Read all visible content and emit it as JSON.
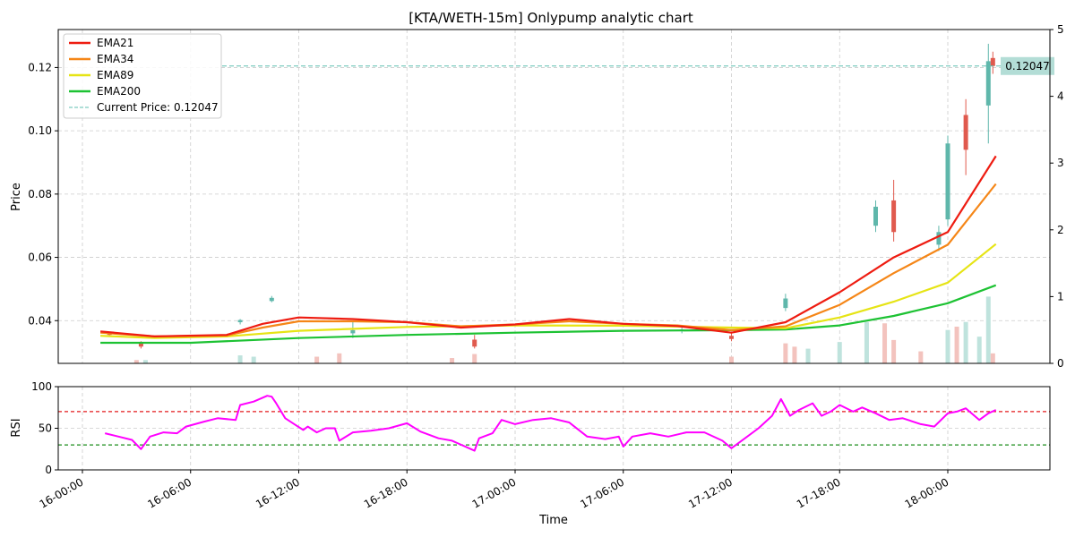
{
  "colors": {
    "up": "#5fb7ab",
    "down": "#e05a4e",
    "ema21": "#ee1c11",
    "ema34": "#f58617",
    "ema89": "#e6e415",
    "ema200": "#1dc233",
    "rsi": "#ff00ff",
    "current_price": "#5fbfb0",
    "rsi_overbought": "#e31a1c",
    "rsi_oversold": "#1a8c1a",
    "grid": "#cccccc"
  },
  "chart_data": [
    {
      "type": "candlestick",
      "title": "[KTA/WETH-15m] Onlypump analytic chart",
      "ylabel": "Price",
      "ylim": [
        0.0265,
        0.132
      ],
      "y_ticks": [
        "0.04",
        "0.06",
        "0.08",
        "0.10",
        "0.12"
      ],
      "y_tick_values": [
        0.04,
        0.06,
        0.08,
        0.1,
        0.12
      ],
      "secondary_ylim": [
        0,
        5
      ],
      "secondary_y_ticks": [
        "0",
        "1",
        "2",
        "3",
        "4",
        "5"
      ],
      "secondary_y_tick_values": [
        0,
        1,
        2,
        3,
        4,
        5
      ],
      "grid": true,
      "legend_position": "top-left",
      "legend": [
        {
          "label": "EMA21",
          "style": "line",
          "color_key": "ema21"
        },
        {
          "label": "EMA34",
          "style": "line",
          "color_key": "ema34"
        },
        {
          "label": "EMA89",
          "style": "line",
          "color_key": "ema89"
        },
        {
          "label": "EMA200",
          "style": "line",
          "color_key": "ema200"
        },
        {
          "label": "Current Price: 0.12047",
          "style": "dashed",
          "color_key": "current_price"
        }
      ],
      "current_price": 0.12047,
      "current_price_label": "0.12047",
      "candles_summary": [
        {
          "time": "16-01:30",
          "open": 0.0362,
          "high": 0.0365,
          "low": 0.0352,
          "close": 0.0355
        },
        {
          "time": "16-03:15",
          "open": 0.033,
          "high": 0.0335,
          "low": 0.0312,
          "close": 0.0318
        },
        {
          "time": "16-08:45",
          "open": 0.0395,
          "high": 0.0405,
          "low": 0.0388,
          "close": 0.0402
        },
        {
          "time": "16-10:30",
          "open": 0.0462,
          "high": 0.0478,
          "low": 0.0458,
          "close": 0.0472
        },
        {
          "time": "16-15:00",
          "open": 0.036,
          "high": 0.0395,
          "low": 0.0345,
          "close": 0.037
        },
        {
          "time": "16-21:45",
          "open": 0.034,
          "high": 0.0355,
          "low": 0.0312,
          "close": 0.0318
        },
        {
          "time": "17-09:15",
          "open": 0.037,
          "high": 0.038,
          "low": 0.036,
          "close": 0.0372
        },
        {
          "time": "17-12:00",
          "open": 0.0352,
          "high": 0.0362,
          "low": 0.0335,
          "close": 0.0342
        },
        {
          "time": "17-15:00",
          "open": 0.044,
          "high": 0.0485,
          "low": 0.043,
          "close": 0.047
        },
        {
          "time": "17-20:00",
          "open": 0.07,
          "high": 0.078,
          "low": 0.068,
          "close": 0.076
        },
        {
          "time": "17-21:00",
          "open": 0.078,
          "high": 0.0845,
          "low": 0.065,
          "close": 0.068
        },
        {
          "time": "17-23:30",
          "open": 0.064,
          "high": 0.07,
          "low": 0.062,
          "close": 0.068
        },
        {
          "time": "18-00:00",
          "open": 0.072,
          "high": 0.0985,
          "low": 0.07,
          "close": 0.096
        },
        {
          "time": "18-01:00",
          "open": 0.105,
          "high": 0.11,
          "low": 0.086,
          "close": 0.094
        },
        {
          "time": "18-02:15",
          "open": 0.108,
          "high": 0.1275,
          "low": 0.096,
          "close": 0.122
        },
        {
          "time": "18-02:30",
          "open": 0.123,
          "high": 0.125,
          "low": 0.118,
          "close": 0.12047
        }
      ],
      "ema21": [
        [
          "16-01:00",
          0.0366
        ],
        [
          "16-04:00",
          0.035
        ],
        [
          "16-08:00",
          0.0355
        ],
        [
          "16-10:00",
          0.039
        ],
        [
          "16-12:00",
          0.041
        ],
        [
          "16-15:00",
          0.0405
        ],
        [
          "16-18:00",
          0.0395
        ],
        [
          "16-21:00",
          0.0378
        ],
        [
          "17-00:00",
          0.0388
        ],
        [
          "17-03:00",
          0.0405
        ],
        [
          "17-06:00",
          0.039
        ],
        [
          "17-09:00",
          0.0383
        ],
        [
          "17-12:00",
          0.0362
        ],
        [
          "17-15:00",
          0.0395
        ],
        [
          "17-18:00",
          0.049
        ],
        [
          "17-21:00",
          0.06
        ],
        [
          "18-00:00",
          0.068
        ],
        [
          "18-02:40",
          0.092
        ]
      ],
      "ema34": [
        [
          "16-01:00",
          0.0362
        ],
        [
          "16-04:00",
          0.035
        ],
        [
          "16-08:00",
          0.0353
        ],
        [
          "16-10:00",
          0.0378
        ],
        [
          "16-12:00",
          0.0398
        ],
        [
          "16-15:00",
          0.0398
        ],
        [
          "16-18:00",
          0.0395
        ],
        [
          "16-21:00",
          0.0382
        ],
        [
          "17-00:00",
          0.0388
        ],
        [
          "17-03:00",
          0.0398
        ],
        [
          "17-06:00",
          0.039
        ],
        [
          "17-09:00",
          0.0385
        ],
        [
          "17-12:00",
          0.037
        ],
        [
          "17-15:00",
          0.0382
        ],
        [
          "17-18:00",
          0.045
        ],
        [
          "17-21:00",
          0.055
        ],
        [
          "18-00:00",
          0.064
        ],
        [
          "18-02:40",
          0.0832
        ]
      ],
      "ema89": [
        [
          "16-01:00",
          0.0352
        ],
        [
          "16-04:00",
          0.0345
        ],
        [
          "16-08:00",
          0.035
        ],
        [
          "16-12:00",
          0.0368
        ],
        [
          "16-18:00",
          0.038
        ],
        [
          "17-00:00",
          0.0385
        ],
        [
          "17-06:00",
          0.0384
        ],
        [
          "17-12:00",
          0.0378
        ],
        [
          "17-15:00",
          0.0376
        ],
        [
          "17-18:00",
          0.041
        ],
        [
          "17-21:00",
          0.046
        ],
        [
          "18-00:00",
          0.052
        ],
        [
          "18-02:40",
          0.0642
        ]
      ],
      "ema200": [
        [
          "16-01:00",
          0.033
        ],
        [
          "16-06:00",
          0.033
        ],
        [
          "16-12:00",
          0.0345
        ],
        [
          "16-18:00",
          0.0355
        ],
        [
          "17-00:00",
          0.0362
        ],
        [
          "17-06:00",
          0.0368
        ],
        [
          "17-12:00",
          0.037
        ],
        [
          "17-15:00",
          0.0372
        ],
        [
          "17-18:00",
          0.0385
        ],
        [
          "17-21:00",
          0.0415
        ],
        [
          "18-00:00",
          0.0455
        ],
        [
          "18-02:40",
          0.0512
        ]
      ],
      "volume": [
        [
          "16-03:00",
          0.05,
          "down"
        ],
        [
          "16-03:30",
          0.05,
          "up"
        ],
        [
          "16-08:45",
          0.12,
          "up"
        ],
        [
          "16-09:30",
          0.1,
          "up"
        ],
        [
          "16-13:00",
          0.1,
          "down"
        ],
        [
          "16-14:15",
          0.15,
          "down"
        ],
        [
          "16-20:30",
          0.08,
          "down"
        ],
        [
          "16-21:45",
          0.14,
          "down"
        ],
        [
          "17-12:00",
          0.1,
          "down"
        ],
        [
          "17-15:00",
          0.3,
          "down"
        ],
        [
          "17-15:30",
          0.25,
          "down"
        ],
        [
          "17-16:15",
          0.22,
          "up"
        ],
        [
          "17-18:00",
          0.32,
          "up"
        ],
        [
          "17-19:30",
          0.62,
          "up"
        ],
        [
          "17-20:30",
          0.6,
          "down"
        ],
        [
          "17-21:00",
          0.35,
          "down"
        ],
        [
          "17-22:30",
          0.18,
          "down"
        ],
        [
          "18-00:00",
          0.5,
          "up"
        ],
        [
          "18-00:30",
          0.55,
          "down"
        ],
        [
          "18-01:00",
          0.62,
          "up"
        ],
        [
          "18-01:45",
          0.4,
          "up"
        ],
        [
          "18-02:15",
          1.0,
          "up"
        ],
        [
          "18-02:30",
          0.15,
          "down"
        ]
      ]
    },
    {
      "type": "line",
      "ylabel": "RSI",
      "xlabel": "Time",
      "ylim": [
        0,
        100
      ],
      "y_ticks": [
        "0",
        "50",
        "100"
      ],
      "y_tick_values": [
        0,
        50,
        100
      ],
      "overbought": 70,
      "oversold": 30,
      "x_ticks": [
        "16-00:00",
        "16-06:00",
        "16-12:00",
        "16-18:00",
        "17-00:00",
        "17-06:00",
        "17-12:00",
        "17-18:00",
        "18-00:00"
      ],
      "rsi": [
        [
          "16-01:15",
          44
        ],
        [
          "16-02:00",
          40
        ],
        [
          "16-02:45",
          36
        ],
        [
          "16-03:15",
          25
        ],
        [
          "16-03:45",
          40
        ],
        [
          "16-04:30",
          45
        ],
        [
          "16-05:15",
          44
        ],
        [
          "16-05:45",
          52
        ],
        [
          "16-06:45",
          58
        ],
        [
          "16-07:30",
          62
        ],
        [
          "16-08:30",
          60
        ],
        [
          "16-08:45",
          78
        ],
        [
          "16-09:30",
          82
        ],
        [
          "16-10:15",
          89
        ],
        [
          "16-10:30",
          88
        ],
        [
          "16-10:45",
          80
        ],
        [
          "16-11:15",
          62
        ],
        [
          "16-11:45",
          55
        ],
        [
          "16-12:15",
          48
        ],
        [
          "16-12:30",
          52
        ],
        [
          "16-13:00",
          45
        ],
        [
          "16-13:30",
          50
        ],
        [
          "16-14:00",
          50
        ],
        [
          "16-14:15",
          35
        ],
        [
          "16-15:00",
          45
        ],
        [
          "16-16:00",
          47
        ],
        [
          "16-17:00",
          50
        ],
        [
          "16-18:00",
          56
        ],
        [
          "16-18:45",
          46
        ],
        [
          "16-19:45",
          38
        ],
        [
          "16-20:30",
          35
        ],
        [
          "16-21:45",
          23
        ],
        [
          "16-22:00",
          38
        ],
        [
          "16-22:45",
          44
        ],
        [
          "16-23:15",
          60
        ],
        [
          "17-00:00",
          55
        ],
        [
          "17-01:00",
          60
        ],
        [
          "17-02:00",
          62
        ],
        [
          "17-03:00",
          57
        ],
        [
          "17-04:00",
          40
        ],
        [
          "17-05:00",
          37
        ],
        [
          "17-05:45",
          40
        ],
        [
          "17-06:00",
          28
        ],
        [
          "17-06:30",
          40
        ],
        [
          "17-07:30",
          44
        ],
        [
          "17-08:30",
          40
        ],
        [
          "17-09:30",
          45
        ],
        [
          "17-10:30",
          45
        ],
        [
          "17-11:30",
          35
        ],
        [
          "17-12:00",
          26
        ],
        [
          "17-12:45",
          38
        ],
        [
          "17-13:30",
          50
        ],
        [
          "17-14:15",
          65
        ],
        [
          "17-14:45",
          85
        ],
        [
          "17-15:15",
          65
        ],
        [
          "17-15:45",
          72
        ],
        [
          "17-16:30",
          80
        ],
        [
          "17-17:00",
          65
        ],
        [
          "17-17:30",
          70
        ],
        [
          "17-18:00",
          78
        ],
        [
          "17-18:45",
          70
        ],
        [
          "17-19:15",
          75
        ],
        [
          "17-20:00",
          68
        ],
        [
          "17-20:45",
          60
        ],
        [
          "17-21:30",
          62
        ],
        [
          "17-22:30",
          55
        ],
        [
          "17-23:15",
          52
        ],
        [
          "18-00:00",
          68
        ],
        [
          "18-00:30",
          70
        ],
        [
          "18-01:00",
          74
        ],
        [
          "18-01:45",
          60
        ],
        [
          "18-02:15",
          68
        ],
        [
          "18-02:40",
          72
        ]
      ]
    }
  ]
}
